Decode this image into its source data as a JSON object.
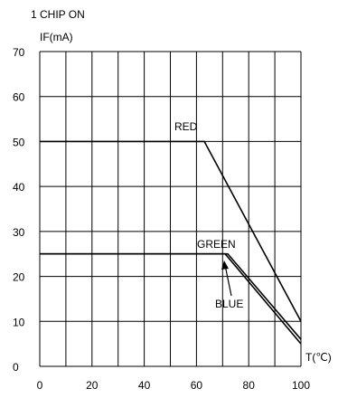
{
  "chart_data": {
    "type": "line",
    "header": "1 CHIP ON",
    "ylabel": "IF(mA)",
    "xlabel": "T(℃)",
    "xlim": [
      0,
      100
    ],
    "ylim": [
      0,
      70
    ],
    "x_ticks": [
      0,
      20,
      40,
      60,
      80,
      100
    ],
    "y_ticks": [
      0,
      10,
      20,
      30,
      40,
      50,
      60,
      70
    ],
    "x_grid": [
      0,
      10,
      20,
      30,
      40,
      50,
      60,
      70,
      80,
      90,
      100
    ],
    "y_grid": [
      0,
      10,
      20,
      30,
      40,
      50,
      60,
      70
    ],
    "grid": true,
    "series": [
      {
        "name": "RED",
        "x": [
          0,
          63,
          100
        ],
        "y": [
          50,
          50,
          10
        ]
      },
      {
        "name": "GREEN",
        "x": [
          0,
          72,
          100
        ],
        "y": [
          25,
          25,
          6
        ]
      },
      {
        "name": "BLUE",
        "x": [
          0,
          71,
          100
        ],
        "y": [
          25,
          25,
          5
        ]
      }
    ]
  }
}
